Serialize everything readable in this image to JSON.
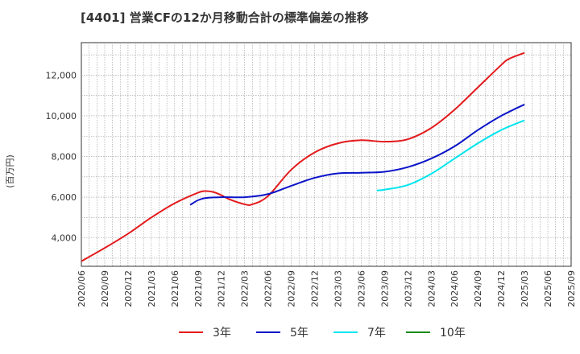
{
  "chart_data": {
    "type": "line",
    "title": "[4401]  営業CFの12か月移動合計の標準偏差の推移",
    "ylabel": "(百万円)",
    "xlabel": "",
    "ylim": [
      2600,
      13600
    ],
    "grid": true,
    "legend_position": "bottom",
    "x_ticks": [
      "2020/06",
      "2020/09",
      "2020/12",
      "2021/03",
      "2021/06",
      "2021/09",
      "2021/12",
      "2022/03",
      "2022/06",
      "2022/09",
      "2022/12",
      "2023/03",
      "2023/06",
      "2023/09",
      "2023/12",
      "2024/03",
      "2024/06",
      "2024/09",
      "2024/12",
      "2025/03",
      "2025/06",
      "2025/09"
    ],
    "y_ticks": [
      4000,
      6000,
      8000,
      10000,
      12000
    ],
    "y_tick_labels": [
      "4,000",
      "6,000",
      "8,000",
      "10,000",
      "12,000"
    ],
    "series": [
      {
        "name": "3年",
        "color": "#e31a1c",
        "x": [
          "2020/06",
          "2020/09",
          "2020/12",
          "2021/03",
          "2021/06",
          "2021/09",
          "2021/10",
          "2021/11",
          "2021/12",
          "2022/01",
          "2022/03",
          "2022/04",
          "2022/06",
          "2022/09",
          "2022/12",
          "2023/03",
          "2023/06",
          "2023/09",
          "2023/12",
          "2024/03",
          "2024/06",
          "2024/09",
          "2024/12",
          "2025/01",
          "2025/03"
        ],
        "values": [
          2850,
          3500,
          4200,
          5000,
          5700,
          6220,
          6300,
          6250,
          6100,
          5900,
          5650,
          5650,
          6050,
          7350,
          8200,
          8650,
          8800,
          8730,
          8850,
          9400,
          10300,
          11400,
          12500,
          12800,
          13100
        ]
      },
      {
        "name": "5年",
        "color": "#0a14c8",
        "x": [
          "2021/08",
          "2021/09",
          "2021/10",
          "2021/12",
          "2022/03",
          "2022/06",
          "2022/09",
          "2022/12",
          "2023/03",
          "2023/06",
          "2023/09",
          "2023/12",
          "2024/03",
          "2024/06",
          "2024/09",
          "2024/12",
          "2025/03"
        ],
        "values": [
          5620,
          5850,
          5960,
          6000,
          6000,
          6150,
          6560,
          6950,
          7170,
          7200,
          7250,
          7480,
          7900,
          8500,
          9300,
          10000,
          10560
        ]
      },
      {
        "name": "7年",
        "color": "#00e5ee",
        "x": [
          "2023/08",
          "2023/09",
          "2023/12",
          "2024/03",
          "2024/06",
          "2024/09",
          "2024/12",
          "2025/03"
        ],
        "values": [
          6330,
          6370,
          6600,
          7150,
          7900,
          8650,
          9300,
          9780
        ]
      },
      {
        "name": "10年",
        "color": "#1a8a1a",
        "x": [],
        "values": []
      }
    ]
  }
}
